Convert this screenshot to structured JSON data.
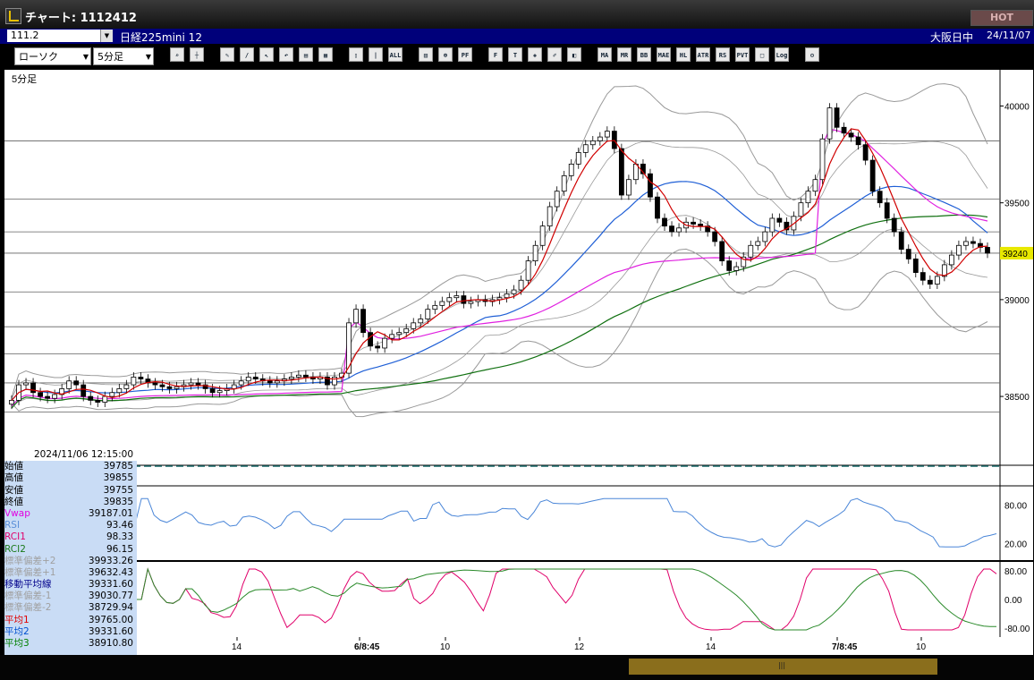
{
  "window": {
    "title": "チャート: 1112412",
    "hot_label": "HOT"
  },
  "info": {
    "code": "111.2",
    "name": "日経225mini 12",
    "market": "大阪日中",
    "date": "24/11/07"
  },
  "toolbar": {
    "chart_type": "ローソク",
    "interval": "5分足",
    "buttons": [
      "search",
      "cursor",
      "draw",
      "trend",
      "arrow",
      "undo",
      "note",
      "clear",
      "candle",
      "bar",
      "ALL",
      "vol",
      "zoom",
      "pf",
      "fib",
      "text",
      "pattern",
      "tool",
      "color",
      "MA",
      "MR",
      "BB",
      "MAE",
      "HL",
      "ATR",
      "RSI",
      "PVT",
      "box",
      "Log",
      "config"
    ]
  },
  "chart": {
    "interval_label": "5分足",
    "y_labels": [
      "40000",
      "39500",
      "39000",
      "38500"
    ],
    "current_price": "39240",
    "rsi_labels": [
      "80.00",
      "20.00"
    ],
    "rci_labels": [
      "80.00",
      "0.00",
      "-80.00"
    ],
    "x_labels": [
      "14",
      "6/8:45",
      "10",
      "12",
      "14",
      "7/8:45",
      "10"
    ]
  },
  "chart_data": {
    "type": "candlestick",
    "interval": "5分足",
    "y_ticks": [
      40000,
      39500,
      39000,
      38500
    ],
    "last_price": 39240,
    "y_range": [
      38200,
      40150
    ],
    "closes": [
      38480,
      38560,
      38570,
      38520,
      38500,
      38490,
      38510,
      38540,
      38580,
      38560,
      38500,
      38480,
      38470,
      38500,
      38520,
      38540,
      38560,
      38600,
      38590,
      38570,
      38560,
      38550,
      38540,
      38550,
      38560,
      38570,
      38560,
      38540,
      38520,
      38530,
      38540,
      38560,
      38580,
      38600,
      38590,
      38580,
      38570,
      38580,
      38590,
      38600,
      38610,
      38600,
      38590,
      38600,
      38560,
      38600,
      38620,
      38880,
      38950,
      38830,
      38760,
      38750,
      38800,
      38820,
      38830,
      38850,
      38880,
      38900,
      38950,
      38970,
      38990,
      39010,
      39020,
      38980,
      38990,
      39000,
      38990,
      39000,
      39010,
      39030,
      39050,
      39100,
      39200,
      39280,
      39380,
      39480,
      39560,
      39640,
      39700,
      39760,
      39800,
      39820,
      39840,
      39870,
      39780,
      39540,
      39620,
      39700,
      39650,
      39530,
      39420,
      39380,
      39350,
      39370,
      39400,
      39390,
      39380,
      39350,
      39300,
      39200,
      39150,
      39170,
      39220,
      39280,
      39300,
      39350,
      39420,
      39400,
      39360,
      39430,
      39500,
      39560,
      39620,
      39830,
      39990,
      39890,
      39860,
      39840,
      39800,
      39720,
      39560,
      39500,
      39420,
      39350,
      39260,
      39210,
      39140,
      39100,
      39080,
      39120,
      39180,
      39230,
      39280,
      39300,
      39290,
      39270,
      39240
    ]
  },
  "data_window": {
    "datetime": "2024/11/06  12:15:00",
    "rows": [
      {
        "label": "始値",
        "value": "39785",
        "color": "#000000"
      },
      {
        "label": "高値",
        "value": "39855",
        "color": "#000000"
      },
      {
        "label": "安値",
        "value": "39755",
        "color": "#000000"
      },
      {
        "label": "終値",
        "value": "39835",
        "color": "#000000"
      },
      {
        "label": "Vwap",
        "value": "39187.01",
        "color": "#e000e0"
      },
      {
        "label": "RSI",
        "value": "93.46",
        "color": "#5a8fd8"
      },
      {
        "label": "RCI1",
        "value": "98.33",
        "color": "#e0006a"
      },
      {
        "label": "RCI2",
        "value": "96.15",
        "color": "#1a7a1a"
      },
      {
        "label": "標準偏差+2",
        "value": "39933.26",
        "color": "#a0a0a0"
      },
      {
        "label": "標準偏差+1",
        "value": "39632.43",
        "color": "#a0a0a0"
      },
      {
        "label": "移動平均線",
        "value": "39331.60",
        "color": "#00008b"
      },
      {
        "label": "標準偏差-1",
        "value": "39030.77",
        "color": "#a0a0a0"
      },
      {
        "label": "標準偏差-2",
        "value": "38729.94",
        "color": "#a0a0a0"
      },
      {
        "label": "平均1",
        "value": "39765.00",
        "color": "#e00000"
      },
      {
        "label": "平均2",
        "value": "39331.60",
        "color": "#0050d0"
      },
      {
        "label": "平均3",
        "value": "38910.80",
        "color": "#008000"
      }
    ]
  },
  "colors": {
    "vwap": "#e020e0",
    "ma1": "#d00000",
    "ma2": "#1f5fd6",
    "ma3": "#107010",
    "rsi": "#4a86d8",
    "rci1": "#e0006a",
    "rci2": "#2a8a2a",
    "band": "#999999"
  }
}
